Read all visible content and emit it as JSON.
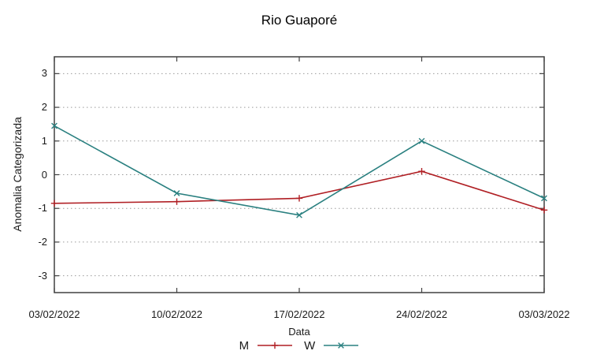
{
  "title": "Rio Guaporé",
  "chart_data": {
    "type": "line",
    "title": "Rio Guaporé",
    "xlabel": "Data",
    "ylabel": "Anomalia Categorizada",
    "categories": [
      "03/02/2022",
      "10/02/2022",
      "17/02/2022",
      "24/02/2022",
      "03/03/2022"
    ],
    "series": [
      {
        "name": "M",
        "color": "#b01f24",
        "marker": "plus",
        "values": [
          -0.85,
          -0.8,
          -0.7,
          0.1,
          -1.05
        ]
      },
      {
        "name": "W",
        "color": "#2a8080",
        "marker": "cross",
        "values": [
          1.45,
          -0.55,
          -1.2,
          1.0,
          -0.7
        ]
      }
    ],
    "yticks": [
      -3,
      -2,
      -1,
      0,
      1,
      2,
      3
    ],
    "ylim": [
      -3.5,
      3.5
    ],
    "grid": true,
    "legend_position": "bottom-center",
    "colors": {
      "grid": "#9a9a9a",
      "border": "#404040",
      "text": "#1a1a1a",
      "background": "#ffffff"
    }
  }
}
